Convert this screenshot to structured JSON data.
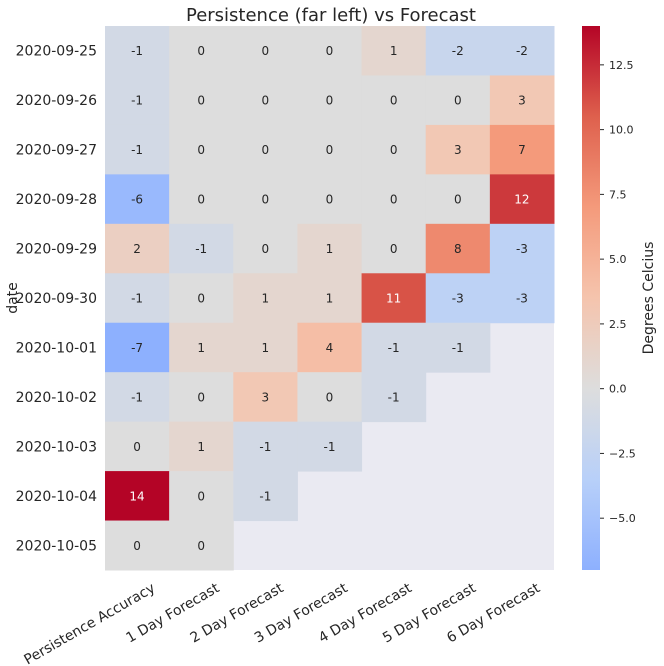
{
  "chart_data": {
    "type": "heatmap",
    "title": "Persistence (far left) vs Forecast",
    "ylabel": "date",
    "xlabel": "",
    "x_categories": [
      "Persistence Accuracy",
      "1 Day Forecast",
      "2 Day Forecast",
      "3 Day Forecast",
      "4 Day Forecast",
      "5 Day Forecast",
      "6 Day Forecast"
    ],
    "y_categories": [
      "2020-09-25",
      "2020-09-26",
      "2020-09-27",
      "2020-09-28",
      "2020-09-29",
      "2020-09-30",
      "2020-10-01",
      "2020-10-02",
      "2020-10-03",
      "2020-10-04",
      "2020-10-05"
    ],
    "values": [
      [
        -1,
        0,
        0,
        0,
        1,
        -2,
        -2
      ],
      [
        -1,
        0,
        0,
        0,
        0,
        0,
        3
      ],
      [
        -1,
        0,
        0,
        0,
        0,
        3,
        7
      ],
      [
        -6,
        0,
        0,
        0,
        0,
        0,
        12
      ],
      [
        2,
        -1,
        0,
        1,
        0,
        8,
        -3
      ],
      [
        -1,
        0,
        1,
        1,
        11,
        -3,
        -3
      ],
      [
        -7,
        1,
        1,
        4,
        -1,
        -1,
        null
      ],
      [
        -1,
        0,
        3,
        0,
        -1,
        null,
        null
      ],
      [
        0,
        1,
        -1,
        -1,
        null,
        null,
        null
      ],
      [
        14,
        0,
        -1,
        null,
        null,
        null,
        null
      ],
      [
        0,
        0,
        null,
        null,
        null,
        null,
        null
      ]
    ],
    "colorbar": {
      "label": "Degrees Celcius",
      "vmin": -7,
      "vmax": 14,
      "center": 0,
      "colormap": "coolwarm",
      "ticks": [
        12.5,
        10.0,
        7.5,
        5.0,
        2.5,
        0.0,
        -2.5,
        -5.0
      ],
      "tick_labels": [
        "12.5",
        "10.0",
        "7.5",
        "5.0",
        "2.5",
        "0.0",
        "−2.5",
        "−5.0"
      ]
    },
    "missing_color": "#eaeaf2"
  }
}
